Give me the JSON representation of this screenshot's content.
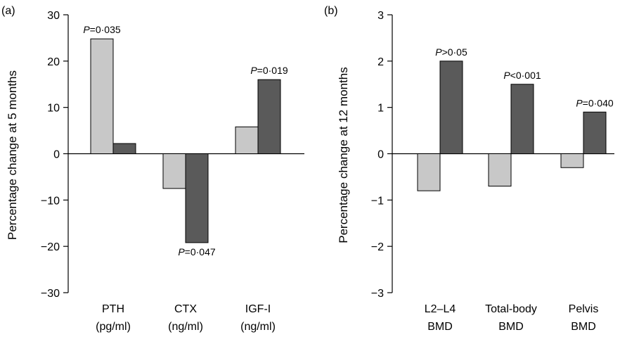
{
  "colors": {
    "series_a": "#c8c8c8",
    "series_b": "#5a5a5a",
    "stroke": "#000000"
  },
  "chart_data": [
    {
      "type": "bar",
      "panel_label": "(a)",
      "ylabel": "Percentage change at 5 months",
      "ylim": [
        -30,
        30
      ],
      "yticks": [
        -30,
        -20,
        -10,
        0,
        10,
        20,
        30
      ],
      "ytick_labels": [
        "−30",
        "−20",
        "−10",
        "0",
        "10",
        "20",
        "30"
      ],
      "categories": [
        [
          "PTH",
          "(pg/ml)"
        ],
        [
          "CTX",
          "(ng/ml)"
        ],
        [
          "IGF-I",
          "(ng/ml)"
        ]
      ],
      "series": [
        {
          "values": [
            24.8,
            -7.5,
            5.8
          ]
        },
        {
          "values": [
            2.2,
            -19.2,
            16.0
          ]
        }
      ],
      "annotations": [
        {
          "category_index": 0,
          "series_index": 0,
          "anchor": "above",
          "italic": "P",
          "rest": "=0·035"
        },
        {
          "category_index": 1,
          "series_index": 1,
          "anchor": "below",
          "italic": "P",
          "rest": "=0·047"
        },
        {
          "category_index": 2,
          "series_index": 1,
          "anchor": "above",
          "italic": "P",
          "rest": "=0·019"
        }
      ]
    },
    {
      "type": "bar",
      "panel_label": "(b)",
      "ylabel": "Percentage change at 12 months",
      "ylim": [
        -3,
        3
      ],
      "yticks": [
        -3,
        -2,
        -1,
        0,
        1,
        2,
        3
      ],
      "ytick_labels": [
        "−3",
        "−2",
        "−1",
        "0",
        "1",
        "2",
        "3"
      ],
      "categories": [
        [
          "L2–L4",
          "BMD"
        ],
        [
          "Total-body",
          "BMD"
        ],
        [
          "Pelvis",
          "BMD"
        ]
      ],
      "series": [
        {
          "values": [
            -0.8,
            -0.7,
            -0.3
          ]
        },
        {
          "values": [
            2.0,
            1.5,
            0.9
          ]
        }
      ],
      "annotations": [
        {
          "category_index": 0,
          "series_index": 1,
          "anchor": "above",
          "italic": "P",
          "rest": ">0·05"
        },
        {
          "category_index": 1,
          "series_index": 1,
          "anchor": "above",
          "italic": "P",
          "rest": "<0·001"
        },
        {
          "category_index": 2,
          "series_index": 1,
          "anchor": "above",
          "italic": "P",
          "rest": "=0·040"
        }
      ]
    }
  ]
}
